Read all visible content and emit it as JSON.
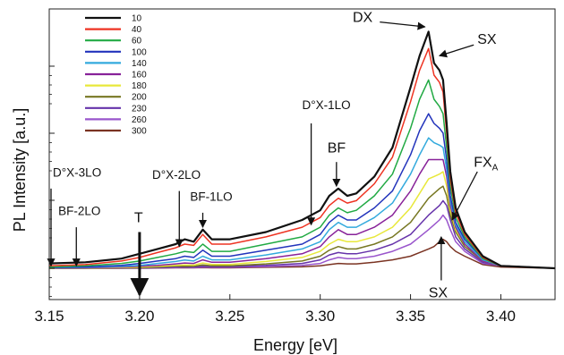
{
  "chart_data": {
    "type": "line",
    "title": "",
    "xlabel": "Energy [eV]",
    "ylabel": "PL Intensity [a.u.]",
    "xlim": [
      3.15,
      3.43
    ],
    "ylim": [
      0,
      1
    ],
    "grid": false,
    "y_scale": "log",
    "legend_position": "top-left",
    "xticks": [
      "3.15",
      "3.20",
      "3.25",
      "3.30",
      "3.35",
      "3.40"
    ],
    "series": [
      {
        "name": "10",
        "color": "#111111",
        "x": [
          3.15,
          3.17,
          3.19,
          3.2,
          3.21,
          3.22,
          3.225,
          3.23,
          3.235,
          3.24,
          3.25,
          3.27,
          3.29,
          3.3,
          3.305,
          3.31,
          3.315,
          3.32,
          3.33,
          3.34,
          3.35,
          3.355,
          3.36,
          3.363,
          3.366,
          3.368,
          3.37,
          3.372,
          3.375,
          3.38,
          3.39,
          3.4,
          3.43
        ],
        "y": [
          0.02,
          0.025,
          0.04,
          0.06,
          0.08,
          0.1,
          0.12,
          0.11,
          0.16,
          0.12,
          0.12,
          0.15,
          0.2,
          0.24,
          0.3,
          0.33,
          0.3,
          0.31,
          0.38,
          0.5,
          0.75,
          0.88,
          0.98,
          0.85,
          0.82,
          0.78,
          0.6,
          0.4,
          0.25,
          0.15,
          0.05,
          0.01,
          0.0
        ]
      },
      {
        "name": "40",
        "color": "#ee3322",
        "x": [
          3.15,
          3.17,
          3.19,
          3.2,
          3.21,
          3.22,
          3.225,
          3.23,
          3.235,
          3.24,
          3.25,
          3.27,
          3.29,
          3.3,
          3.305,
          3.31,
          3.315,
          3.32,
          3.33,
          3.34,
          3.35,
          3.355,
          3.36,
          3.363,
          3.366,
          3.368,
          3.37,
          3.372,
          3.375,
          3.38,
          3.39,
          3.4,
          3.43
        ],
        "y": [
          0.01,
          0.015,
          0.03,
          0.045,
          0.065,
          0.085,
          0.1,
          0.095,
          0.14,
          0.1,
          0.1,
          0.13,
          0.17,
          0.21,
          0.26,
          0.29,
          0.27,
          0.28,
          0.35,
          0.46,
          0.69,
          0.82,
          0.91,
          0.8,
          0.77,
          0.73,
          0.56,
          0.37,
          0.23,
          0.14,
          0.045,
          0.01,
          0.0
        ]
      },
      {
        "name": "60",
        "color": "#22aa44",
        "x": [
          3.15,
          3.17,
          3.19,
          3.2,
          3.21,
          3.22,
          3.225,
          3.23,
          3.235,
          3.24,
          3.25,
          3.27,
          3.29,
          3.3,
          3.305,
          3.31,
          3.315,
          3.32,
          3.33,
          3.34,
          3.35,
          3.355,
          3.36,
          3.363,
          3.366,
          3.368,
          3.37,
          3.372,
          3.375,
          3.38,
          3.39,
          3.4,
          3.43
        ],
        "y": [
          0.005,
          0.01,
          0.02,
          0.03,
          0.045,
          0.06,
          0.07,
          0.065,
          0.1,
          0.07,
          0.07,
          0.1,
          0.13,
          0.17,
          0.22,
          0.25,
          0.23,
          0.24,
          0.3,
          0.39,
          0.58,
          0.7,
          0.78,
          0.7,
          0.67,
          0.64,
          0.5,
          0.34,
          0.21,
          0.13,
          0.04,
          0.01,
          0.0
        ]
      },
      {
        "name": "100",
        "color": "#2233bb",
        "x": [
          3.15,
          3.17,
          3.19,
          3.2,
          3.21,
          3.22,
          3.225,
          3.23,
          3.235,
          3.24,
          3.25,
          3.27,
          3.29,
          3.3,
          3.305,
          3.31,
          3.315,
          3.32,
          3.33,
          3.34,
          3.35,
          3.355,
          3.36,
          3.363,
          3.366,
          3.368,
          3.37,
          3.372,
          3.375,
          3.38,
          3.39,
          3.4,
          3.43
        ],
        "y": [
          0.003,
          0.006,
          0.012,
          0.02,
          0.03,
          0.04,
          0.05,
          0.045,
          0.075,
          0.05,
          0.05,
          0.075,
          0.1,
          0.14,
          0.19,
          0.22,
          0.2,
          0.2,
          0.25,
          0.32,
          0.47,
          0.57,
          0.64,
          0.6,
          0.58,
          0.56,
          0.45,
          0.3,
          0.19,
          0.12,
          0.04,
          0.01,
          0.0
        ]
      },
      {
        "name": "140",
        "color": "#33aadd",
        "x": [
          3.15,
          3.17,
          3.19,
          3.2,
          3.21,
          3.22,
          3.225,
          3.23,
          3.235,
          3.24,
          3.25,
          3.27,
          3.29,
          3.3,
          3.305,
          3.31,
          3.315,
          3.32,
          3.33,
          3.34,
          3.35,
          3.355,
          3.36,
          3.363,
          3.366,
          3.368,
          3.37,
          3.372,
          3.375,
          3.38,
          3.39,
          3.4,
          3.43
        ],
        "y": [
          0.002,
          0.004,
          0.008,
          0.012,
          0.02,
          0.028,
          0.034,
          0.03,
          0.05,
          0.035,
          0.035,
          0.055,
          0.08,
          0.11,
          0.16,
          0.19,
          0.17,
          0.17,
          0.21,
          0.27,
          0.39,
          0.47,
          0.54,
          0.52,
          0.51,
          0.5,
          0.41,
          0.28,
          0.18,
          0.11,
          0.035,
          0.01,
          0.0
        ]
      },
      {
        "name": "160",
        "color": "#882299",
        "x": [
          3.15,
          3.17,
          3.19,
          3.2,
          3.21,
          3.22,
          3.225,
          3.23,
          3.235,
          3.24,
          3.25,
          3.27,
          3.29,
          3.3,
          3.305,
          3.31,
          3.315,
          3.32,
          3.33,
          3.34,
          3.35,
          3.355,
          3.36,
          3.363,
          3.366,
          3.368,
          3.37,
          3.372,
          3.375,
          3.38,
          3.39,
          3.4,
          3.43
        ],
        "y": [
          0.001,
          0.002,
          0.005,
          0.008,
          0.012,
          0.018,
          0.022,
          0.02,
          0.035,
          0.025,
          0.025,
          0.04,
          0.06,
          0.09,
          0.13,
          0.16,
          0.14,
          0.14,
          0.17,
          0.22,
          0.32,
          0.39,
          0.45,
          0.45,
          0.45,
          0.45,
          0.38,
          0.26,
          0.17,
          0.1,
          0.03,
          0.01,
          0.0
        ]
      },
      {
        "name": "180",
        "color": "#e8e83a",
        "x": [
          3.15,
          3.17,
          3.19,
          3.2,
          3.21,
          3.22,
          3.225,
          3.23,
          3.235,
          3.24,
          3.25,
          3.27,
          3.29,
          3.3,
          3.305,
          3.31,
          3.315,
          3.32,
          3.33,
          3.34,
          3.35,
          3.355,
          3.36,
          3.363,
          3.366,
          3.368,
          3.37,
          3.372,
          3.375,
          3.38,
          3.39,
          3.4,
          3.43
        ],
        "y": [
          0.0,
          0.001,
          0.003,
          0.005,
          0.008,
          0.012,
          0.014,
          0.013,
          0.022,
          0.016,
          0.016,
          0.028,
          0.045,
          0.07,
          0.1,
          0.12,
          0.11,
          0.11,
          0.13,
          0.17,
          0.25,
          0.31,
          0.37,
          0.38,
          0.39,
          0.4,
          0.34,
          0.24,
          0.16,
          0.1,
          0.03,
          0.01,
          0.0
        ]
      },
      {
        "name": "200",
        "color": "#777722",
        "x": [
          3.15,
          3.17,
          3.19,
          3.2,
          3.21,
          3.22,
          3.225,
          3.23,
          3.235,
          3.24,
          3.25,
          3.27,
          3.29,
          3.3,
          3.305,
          3.31,
          3.315,
          3.32,
          3.33,
          3.34,
          3.35,
          3.355,
          3.36,
          3.363,
          3.366,
          3.368,
          3.37,
          3.372,
          3.375,
          3.38,
          3.39,
          3.4,
          3.43
        ],
        "y": [
          0.0,
          0.0,
          0.002,
          0.003,
          0.005,
          0.008,
          0.009,
          0.008,
          0.014,
          0.01,
          0.01,
          0.018,
          0.03,
          0.05,
          0.075,
          0.09,
          0.08,
          0.08,
          0.1,
          0.13,
          0.19,
          0.24,
          0.29,
          0.31,
          0.33,
          0.34,
          0.3,
          0.22,
          0.15,
          0.09,
          0.03,
          0.01,
          0.0
        ]
      },
      {
        "name": "230",
        "color": "#6633aa",
        "x": [
          3.15,
          3.17,
          3.19,
          3.2,
          3.21,
          3.22,
          3.225,
          3.23,
          3.235,
          3.24,
          3.25,
          3.27,
          3.29,
          3.3,
          3.305,
          3.31,
          3.315,
          3.32,
          3.33,
          3.34,
          3.35,
          3.355,
          3.36,
          3.363,
          3.366,
          3.368,
          3.37,
          3.372,
          3.375,
          3.38,
          3.39,
          3.4,
          3.43
        ],
        "y": [
          0.0,
          0.0,
          0.001,
          0.002,
          0.003,
          0.005,
          0.006,
          0.005,
          0.009,
          0.007,
          0.007,
          0.012,
          0.02,
          0.035,
          0.055,
          0.065,
          0.06,
          0.06,
          0.075,
          0.1,
          0.14,
          0.18,
          0.22,
          0.24,
          0.26,
          0.28,
          0.26,
          0.2,
          0.13,
          0.08,
          0.025,
          0.01,
          0.0
        ]
      },
      {
        "name": "260",
        "color": "#9955cc",
        "x": [
          3.15,
          3.17,
          3.19,
          3.2,
          3.21,
          3.22,
          3.225,
          3.23,
          3.235,
          3.24,
          3.25,
          3.27,
          3.29,
          3.3,
          3.305,
          3.31,
          3.315,
          3.32,
          3.33,
          3.34,
          3.35,
          3.355,
          3.36,
          3.363,
          3.366,
          3.368,
          3.37,
          3.372,
          3.375,
          3.38,
          3.39,
          3.4,
          3.43
        ],
        "y": [
          0.0,
          0.0,
          0.0,
          0.001,
          0.002,
          0.003,
          0.004,
          0.003,
          0.005,
          0.004,
          0.004,
          0.007,
          0.012,
          0.02,
          0.035,
          0.045,
          0.04,
          0.04,
          0.05,
          0.07,
          0.1,
          0.13,
          0.16,
          0.18,
          0.2,
          0.22,
          0.2,
          0.16,
          0.11,
          0.07,
          0.02,
          0.01,
          0.0
        ]
      },
      {
        "name": "300",
        "color": "#7a3322",
        "x": [
          3.15,
          3.17,
          3.19,
          3.2,
          3.21,
          3.22,
          3.225,
          3.23,
          3.235,
          3.24,
          3.25,
          3.27,
          3.29,
          3.3,
          3.305,
          3.31,
          3.315,
          3.32,
          3.33,
          3.34,
          3.35,
          3.355,
          3.36,
          3.363,
          3.366,
          3.368,
          3.37,
          3.372,
          3.375,
          3.38,
          3.39,
          3.4,
          3.43
        ],
        "y": [
          0.0,
          0.0,
          0.0,
          0.0,
          0.001,
          0.002,
          0.002,
          0.002,
          0.003,
          0.002,
          0.002,
          0.004,
          0.006,
          0.01,
          0.015,
          0.02,
          0.018,
          0.018,
          0.025,
          0.035,
          0.05,
          0.065,
          0.08,
          0.09,
          0.11,
          0.12,
          0.11,
          0.09,
          0.07,
          0.05,
          0.015,
          0.005,
          0.0
        ]
      }
    ],
    "annotations": [
      {
        "id": "dx",
        "text": "DX",
        "big": true,
        "tx": 3.318,
        "ty": 1.02,
        "ax0": 3.333,
        "ay0": 1.02,
        "ax1": 3.358,
        "ay1": 1.0
      },
      {
        "id": "sx-top",
        "text": "SX",
        "big": true,
        "tx": 3.387,
        "ty": 0.93,
        "ax0": 3.385,
        "ay0": 0.925,
        "ax1": 3.366,
        "ay1": 0.88
      },
      {
        "id": "fxa",
        "text": "FX",
        "sub": "A",
        "big": true,
        "tx": 3.385,
        "ty": 0.42,
        "ax0": 3.387,
        "ay0": 0.4,
        "ax1": 3.373,
        "ay1": 0.2
      },
      {
        "id": "sx-bottom",
        "text": "SX",
        "big": true,
        "tx": 3.36,
        "ty": -0.12,
        "ax0": 3.367,
        "ay0": -0.05,
        "ax1": 3.367,
        "ay1": 0.13
      },
      {
        "id": "dox-1lo",
        "text": "D°X-1LO",
        "tx": 3.29,
        "ty": 0.66,
        "ax0": 3.295,
        "ay0": 0.6,
        "ax1": 3.295,
        "ay1": 0.18
      },
      {
        "id": "bf",
        "text": "BF",
        "big": true,
        "tx": 3.304,
        "ty": 0.48,
        "ax0": 3.309,
        "ay0": 0.44,
        "ax1": 3.309,
        "ay1": 0.34
      },
      {
        "id": "dox-2lo",
        "text": "D°X-2LO",
        "tx": 3.207,
        "ty": 0.37,
        "ax0": 3.222,
        "ay0": 0.32,
        "ax1": 3.222,
        "ay1": 0.09
      },
      {
        "id": "bf-1lo",
        "text": "BF-1LO",
        "tx": 3.228,
        "ty": 0.28,
        "ax0": 3.235,
        "ay0": 0.23,
        "ax1": 3.235,
        "ay1": 0.17
      },
      {
        "id": "dox-3lo",
        "text": "D°X-3LO",
        "tx": 3.152,
        "ty": 0.38,
        "ax0": 3.151,
        "ay0": 0.33,
        "ax1": 3.151,
        "ay1": 0.01
      },
      {
        "id": "bf-2lo",
        "text": "BF-2LO",
        "tx": 3.155,
        "ty": 0.22,
        "ax0": 3.165,
        "ay0": 0.17,
        "ax1": 3.165,
        "ay1": 0.01
      },
      {
        "id": "t",
        "text": "T",
        "big": true,
        "thick": true,
        "tx": 3.197,
        "ty": 0.19,
        "ax0": 3.2,
        "ay0": 0.15,
        "ax1": 3.2,
        "ay1": -0.11
      }
    ]
  }
}
